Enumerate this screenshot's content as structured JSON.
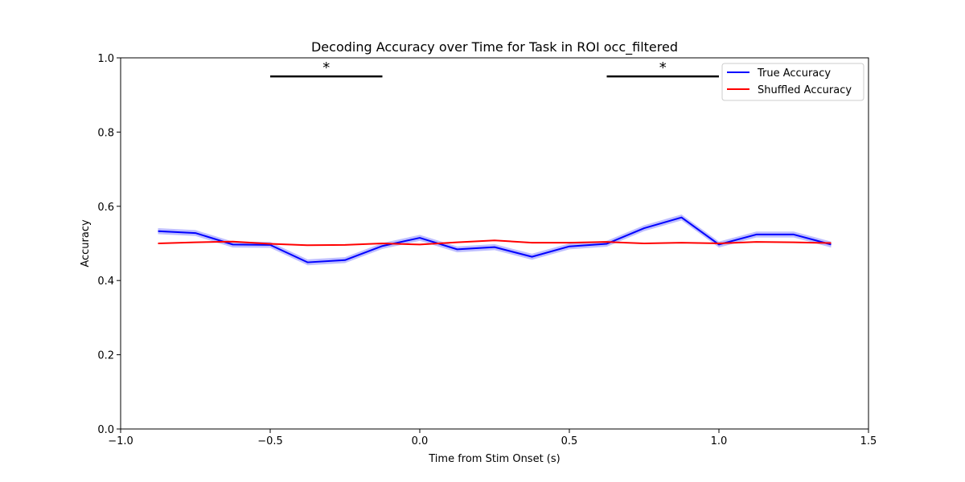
{
  "chart_data": {
    "type": "line",
    "title": "Decoding Accuracy over Time for Task in ROI occ_filtered",
    "xlabel": "Time from Stim Onset (s)",
    "ylabel": "Accuracy",
    "xlim": [
      -1.0,
      1.5
    ],
    "ylim": [
      0.0,
      1.0
    ],
    "xticks": [
      -1.0,
      -0.5,
      0.0,
      0.5,
      1.0,
      1.5
    ],
    "xtick_labels": [
      "−1.0",
      "−0.5",
      "0.0",
      "0.5",
      "1.0",
      "1.5"
    ],
    "yticks": [
      0.0,
      0.2,
      0.4,
      0.6,
      0.8,
      1.0
    ],
    "ytick_labels": [
      "0.0",
      "0.2",
      "0.4",
      "0.6",
      "0.8",
      "1.0"
    ],
    "grid": false,
    "legend_position": "top-right",
    "x": [
      -0.875,
      -0.75,
      -0.625,
      -0.5,
      -0.375,
      -0.25,
      -0.125,
      0.0,
      0.125,
      0.25,
      0.375,
      0.5,
      0.625,
      0.75,
      0.875,
      1.0,
      1.125,
      1.25,
      1.375
    ],
    "series": [
      {
        "name": "True Accuracy",
        "color": "#0000ff",
        "band_color": "#8080ff",
        "values": [
          0.533,
          0.528,
          0.497,
          0.496,
          0.449,
          0.455,
          0.493,
          0.515,
          0.484,
          0.49,
          0.464,
          0.492,
          0.499,
          0.541,
          0.57,
          0.497,
          0.524,
          0.524,
          0.497
        ],
        "ci_halfwidth": 0.008
      },
      {
        "name": "Shuffled Accuracy",
        "color": "#ff0000",
        "values": [
          0.5,
          0.503,
          0.505,
          0.499,
          0.495,
          0.496,
          0.5,
          0.497,
          0.503,
          0.508,
          0.502,
          0.502,
          0.504,
          0.5,
          0.502,
          0.5,
          0.504,
          0.503,
          0.501
        ]
      }
    ],
    "annotations": [
      {
        "type": "significance",
        "x_start": -0.5,
        "x_end": -0.125,
        "y": 0.95,
        "label": "*"
      },
      {
        "type": "significance",
        "x_start": 0.625,
        "x_end": 1.0,
        "y": 0.95,
        "label": "*"
      }
    ]
  }
}
